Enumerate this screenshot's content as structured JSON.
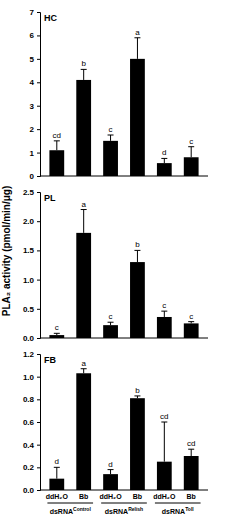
{
  "chart_data": [
    {
      "type": "bar",
      "title": "HC",
      "color": "#000000",
      "values": [
        1.1,
        4.1,
        1.5,
        5.0,
        0.55,
        0.8
      ],
      "errors": [
        0.4,
        0.45,
        0.25,
        0.9,
        0.2,
        0.45
      ],
      "letters": [
        "cd",
        "b",
        "c",
        "a",
        "d",
        "c"
      ],
      "ylim": [
        0,
        7
      ],
      "yticks": [
        0,
        1,
        2,
        3,
        4,
        5,
        6,
        7
      ],
      "tick_labels": "y"
    },
    {
      "type": "bar",
      "title": "PL",
      "color": "#000000",
      "y_label": "PLA₂ activity (pmol/min/μg)",
      "values": [
        0.05,
        1.8,
        0.22,
        1.3,
        0.36,
        0.25
      ],
      "errors": [
        0.03,
        0.4,
        0.05,
        0.2,
        0.1,
        0.03
      ],
      "letters": [
        "c",
        "a",
        "c",
        "b",
        "c",
        "c"
      ],
      "ylim": [
        0,
        2.5
      ],
      "yticks": [
        {
          "value": 0,
          "label": "0.0"
        },
        {
          "value": 0.5,
          "label": "0.5"
        },
        {
          "value": 1,
          "label": "1.0"
        },
        {
          "value": 1.5,
          "label": "1.5"
        },
        {
          "value": 2,
          "label": "2.0"
        },
        {
          "value": 2.5,
          "label": "2.5"
        }
      ],
      "tick_labels": "y"
    },
    {
      "type": "bar",
      "title": "FB",
      "color": "#000000",
      "categories": [
        "ddH₂O",
        "Bb",
        "ddH₂O",
        "Bb",
        "ddH₂O",
        "Bb"
      ],
      "groups": [
        {
          "text": "dsRNA",
          "superscript": "Control"
        },
        {
          "text": "dsRNA",
          "superscript": "Relish"
        },
        {
          "text": "dsRNA",
          "superscript": "Toll"
        }
      ],
      "values": [
        0.1,
        1.03,
        0.14,
        0.81,
        0.25,
        0.3
      ],
      "errors": [
        0.1,
        0.04,
        0.04,
        0.02,
        0.35,
        0.06
      ],
      "letters": [
        "d",
        "a",
        "d",
        "b",
        "cd",
        "cd"
      ],
      "ylim": [
        0,
        1.2
      ],
      "yticks": [
        {
          "value": 0,
          "label": "0.0"
        },
        {
          "value": 0.2,
          "label": "0.2"
        },
        {
          "value": 0.4,
          "label": "0.4"
        },
        {
          "value": 0.6,
          "label": "0.6"
        },
        {
          "value": 0.8,
          "label": "0.8"
        },
        {
          "value": 1,
          "label": "1.0"
        },
        {
          "value": 1.2,
          "label": "1.2"
        }
      ]
    }
  ]
}
